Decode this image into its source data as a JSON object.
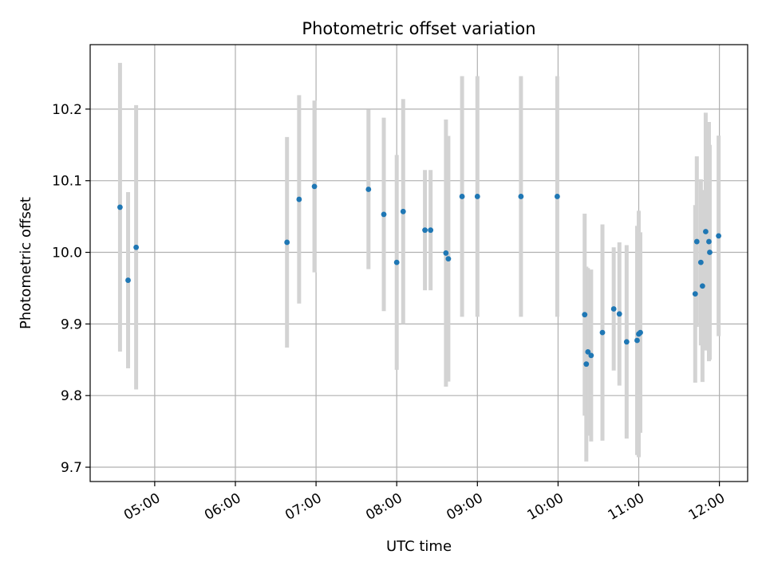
{
  "chart_data": {
    "type": "scatter",
    "title": "Photometric offset variation",
    "xlabel": "UTC time",
    "ylabel": "Photometric offset",
    "x_unit": "UTC time (hours)",
    "xlim": [
      4.2,
      12.35
    ],
    "ylim": [
      9.68,
      10.29
    ],
    "grid": true,
    "x_ticks": [
      {
        "value": 5,
        "label": "05:00"
      },
      {
        "value": 6,
        "label": "06:00"
      },
      {
        "value": 7,
        "label": "07:00"
      },
      {
        "value": 8,
        "label": "08:00"
      },
      {
        "value": 9,
        "label": "09:00"
      },
      {
        "value": 10,
        "label": "10:00"
      },
      {
        "value": 11,
        "label": "11:00"
      },
      {
        "value": 12,
        "label": "12:00"
      }
    ],
    "y_ticks": [
      {
        "value": 9.7,
        "label": "9.7"
      },
      {
        "value": 9.8,
        "label": "9.8"
      },
      {
        "value": 9.9,
        "label": "9.9"
      },
      {
        "value": 10.0,
        "label": "10.0"
      },
      {
        "value": 10.1,
        "label": "10.1"
      },
      {
        "value": 10.2,
        "label": "10.2"
      }
    ],
    "colors": {
      "point": "#1f77b4",
      "errorbar": "#d3d3d3",
      "grid": "#b0b0b0"
    },
    "series": [
      {
        "points": [
          {
            "x": 4.57,
            "y": 10.063,
            "err": 0.2015
          },
          {
            "x": 4.67,
            "y": 9.961,
            "err": 0.123
          },
          {
            "x": 4.77,
            "y": 10.007,
            "err": 0.1985
          },
          {
            "x": 6.64,
            "y": 10.014,
            "err": 0.147
          },
          {
            "x": 6.79,
            "y": 10.074,
            "err": 0.1455
          },
          {
            "x": 6.98,
            "y": 10.092,
            "err": 0.12
          },
          {
            "x": 7.65,
            "y": 10.088,
            "err": 0.1115
          },
          {
            "x": 7.84,
            "y": 10.053,
            "err": 0.135
          },
          {
            "x": 8.0,
            "y": 9.986,
            "err": 0.15
          },
          {
            "x": 8.08,
            "y": 10.057,
            "err": 0.157
          },
          {
            "x": 8.35,
            "y": 10.031,
            "err": 0.084
          },
          {
            "x": 8.42,
            "y": 10.031,
            "err": 0.084
          },
          {
            "x": 8.61,
            "y": 9.999,
            "err": 0.1865
          },
          {
            "x": 8.64,
            "y": 9.991,
            "err": 0.1715
          },
          {
            "x": 8.81,
            "y": 10.078,
            "err": 0.168
          },
          {
            "x": 9.0,
            "y": 10.078,
            "err": 0.168
          },
          {
            "x": 9.54,
            "y": 10.078,
            "err": 0.168
          },
          {
            "x": 9.99,
            "y": 10.078,
            "err": 0.168
          },
          {
            "x": 10.33,
            "y": 9.913,
            "err": 0.141
          },
          {
            "x": 10.35,
            "y": 9.844,
            "err": 0.136
          },
          {
            "x": 10.37,
            "y": 9.861,
            "err": 0.117
          },
          {
            "x": 10.41,
            "y": 9.856,
            "err": 0.12
          },
          {
            "x": 10.55,
            "y": 9.888,
            "err": 0.151
          },
          {
            "x": 10.69,
            "y": 9.921,
            "err": 0.086
          },
          {
            "x": 10.76,
            "y": 9.914,
            "err": 0.1
          },
          {
            "x": 10.85,
            "y": 9.875,
            "err": 0.135
          },
          {
            "x": 10.98,
            "y": 9.877,
            "err": 0.16
          },
          {
            "x": 11.0,
            "y": 9.886,
            "err": 0.172
          },
          {
            "x": 11.02,
            "y": 9.888,
            "err": 0.14
          },
          {
            "x": 11.7,
            "y": 9.942,
            "err": 0.124
          },
          {
            "x": 11.72,
            "y": 10.015,
            "err": 0.119
          },
          {
            "x": 11.77,
            "y": 9.986,
            "err": 0.116
          },
          {
            "x": 11.79,
            "y": 9.953,
            "err": 0.134
          },
          {
            "x": 11.83,
            "y": 10.029,
            "err": 0.166
          },
          {
            "x": 11.87,
            "y": 10.015,
            "err": 0.167
          },
          {
            "x": 11.88,
            "y": 10.0,
            "err": 0.15
          },
          {
            "x": 11.99,
            "y": 10.023,
            "err": 0.14
          }
        ]
      }
    ]
  }
}
